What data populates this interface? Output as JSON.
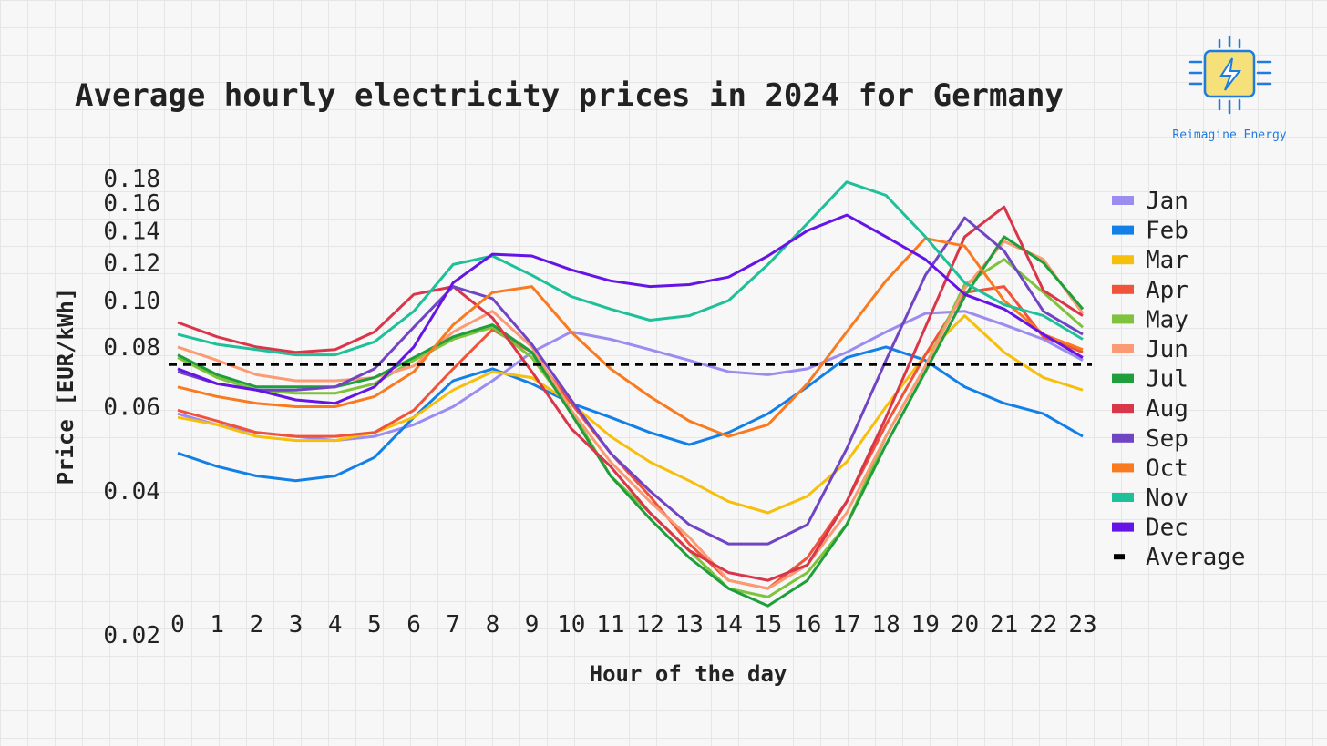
{
  "brand": {
    "name": "Reimagine Energy",
    "primary": "#1e7be0",
    "accent": "#f5e07a",
    "icon": "chip-lightning-icon"
  },
  "chart_data": {
    "type": "line",
    "title": "Average hourly electricity prices in 2024 for Germany",
    "xlabel": "Hour of the day",
    "ylabel": "Price [EUR/kWh]",
    "y_ticks": [
      "0.02",
      "0.04",
      "0.06",
      "0.08",
      "0.10",
      "0.12",
      "0.14",
      "0.16",
      "0.18"
    ],
    "ylim": [
      0.02,
      0.18
    ],
    "y_scale": "log",
    "grid": true,
    "legend": "right",
    "x": [
      0,
      1,
      2,
      3,
      4,
      5,
      6,
      7,
      8,
      9,
      10,
      11,
      12,
      13,
      14,
      15,
      16,
      17,
      18,
      19,
      20,
      21,
      22,
      23
    ],
    "average": {
      "name": "Average",
      "value": 0.0735,
      "color": "#000000",
      "style": "dashed"
    },
    "series": [
      {
        "name": "Jan",
        "color": "#9b8cf0",
        "values": [
          0.058,
          0.055,
          0.053,
          0.052,
          0.051,
          0.052,
          0.055,
          0.06,
          0.068,
          0.078,
          0.086,
          0.083,
          0.079,
          0.075,
          0.071,
          0.07,
          0.072,
          0.078,
          0.086,
          0.094,
          0.095,
          0.089,
          0.083,
          0.075
        ]
      },
      {
        "name": "Feb",
        "color": "#1380e8",
        "values": [
          0.048,
          0.045,
          0.043,
          0.042,
          0.043,
          0.047,
          0.057,
          0.068,
          0.072,
          0.067,
          0.061,
          0.057,
          0.053,
          0.05,
          0.053,
          0.058,
          0.066,
          0.076,
          0.08,
          0.075,
          0.066,
          0.061,
          0.058,
          0.052
        ]
      },
      {
        "name": "Mar",
        "color": "#f6bf0c",
        "values": [
          0.057,
          0.055,
          0.052,
          0.051,
          0.051,
          0.053,
          0.057,
          0.065,
          0.071,
          0.069,
          0.061,
          0.052,
          0.046,
          0.042,
          0.038,
          0.036,
          0.039,
          0.046,
          0.06,
          0.077,
          0.093,
          0.078,
          0.069,
          0.065
        ]
      },
      {
        "name": "Apr",
        "color": "#f0533a",
        "values": [
          0.059,
          0.056,
          0.053,
          0.052,
          0.052,
          0.053,
          0.059,
          0.072,
          0.087,
          0.078,
          0.061,
          0.048,
          0.039,
          0.031,
          0.026,
          0.025,
          0.029,
          0.038,
          0.055,
          0.077,
          0.104,
          0.107,
          0.084,
          0.078
        ]
      },
      {
        "name": "May",
        "color": "#7fc23d",
        "values": [
          0.076,
          0.069,
          0.065,
          0.064,
          0.064,
          0.067,
          0.075,
          0.083,
          0.088,
          0.076,
          0.059,
          0.043,
          0.036,
          0.03,
          0.025,
          0.024,
          0.027,
          0.034,
          0.052,
          0.073,
          0.108,
          0.122,
          0.104,
          0.088
        ]
      },
      {
        "name": "Jun",
        "color": "#fb9a73",
        "values": [
          0.08,
          0.075,
          0.07,
          0.068,
          0.068,
          0.069,
          0.073,
          0.086,
          0.095,
          0.08,
          0.059,
          0.046,
          0.038,
          0.032,
          0.026,
          0.025,
          0.028,
          0.036,
          0.052,
          0.073,
          0.106,
          0.133,
          0.122,
          0.094
        ]
      },
      {
        "name": "Jul",
        "color": "#1f9e3c",
        "values": [
          0.077,
          0.07,
          0.066,
          0.066,
          0.066,
          0.069,
          0.076,
          0.084,
          0.089,
          0.078,
          0.058,
          0.043,
          0.035,
          0.029,
          0.025,
          0.023,
          0.026,
          0.034,
          0.05,
          0.071,
          0.102,
          0.136,
          0.12,
          0.096
        ]
      },
      {
        "name": "Aug",
        "color": "#d9364a",
        "values": [
          0.09,
          0.084,
          0.08,
          0.078,
          0.079,
          0.086,
          0.103,
          0.107,
          0.092,
          0.071,
          0.054,
          0.045,
          0.036,
          0.03,
          0.027,
          0.026,
          0.028,
          0.038,
          0.057,
          0.088,
          0.136,
          0.157,
          0.105,
          0.093
        ]
      },
      {
        "name": "Sep",
        "color": "#7045c4",
        "values": [
          0.071,
          0.067,
          0.065,
          0.065,
          0.066,
          0.072,
          0.088,
          0.107,
          0.101,
          0.081,
          0.062,
          0.048,
          0.04,
          0.034,
          0.031,
          0.031,
          0.034,
          0.049,
          0.075,
          0.113,
          0.149,
          0.127,
          0.095,
          0.085
        ]
      },
      {
        "name": "Oct",
        "color": "#f97a1f",
        "values": [
          0.066,
          0.063,
          0.061,
          0.06,
          0.06,
          0.063,
          0.071,
          0.089,
          0.104,
          0.107,
          0.086,
          0.072,
          0.063,
          0.056,
          0.052,
          0.055,
          0.067,
          0.086,
          0.11,
          0.135,
          0.13,
          0.1,
          0.085,
          0.079
        ]
      },
      {
        "name": "Nov",
        "color": "#1ec09a",
        "values": [
          0.085,
          0.081,
          0.079,
          0.077,
          0.077,
          0.082,
          0.095,
          0.119,
          0.124,
          0.113,
          0.102,
          0.096,
          0.091,
          0.093,
          0.1,
          0.119,
          0.145,
          0.177,
          0.166,
          0.136,
          0.109,
          0.098,
          0.093,
          0.083
        ]
      },
      {
        "name": "Dec",
        "color": "#6614e6",
        "values": [
          0.072,
          0.067,
          0.065,
          0.062,
          0.061,
          0.066,
          0.08,
          0.109,
          0.125,
          0.124,
          0.116,
          0.11,
          0.107,
          0.108,
          0.112,
          0.124,
          0.14,
          0.151,
          0.136,
          0.122,
          0.103,
          0.096,
          0.085,
          0.076
        ]
      }
    ]
  }
}
